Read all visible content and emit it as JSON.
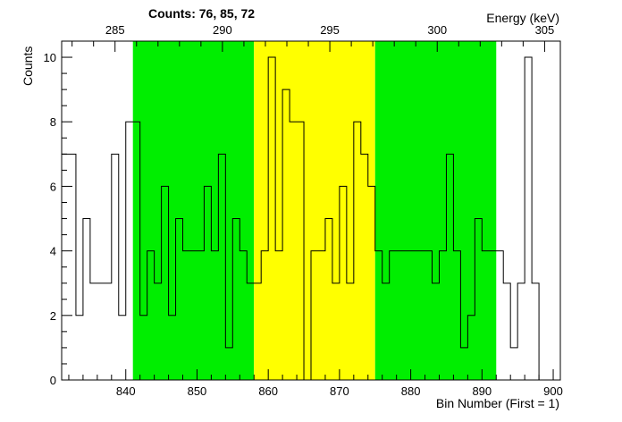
{
  "chart_data": {
    "type": "histogram",
    "counts_label": "Counts:   76,   85,   72",
    "xlabel": "Bin Number (First = 1)",
    "ylabel": "Counts",
    "x2label": "Energy (keV)",
    "xlim": [
      831,
      901
    ],
    "ylim": [
      0,
      10.5
    ],
    "x_ticks": [
      840,
      850,
      860,
      870,
      880,
      890,
      900
    ],
    "y_ticks": [
      0,
      2,
      4,
      6,
      8,
      10
    ],
    "energy_ticks": [
      285,
      290,
      295,
      300,
      305
    ],
    "energy_calibration": {
      "bin": [
        840,
        900
      ],
      "energy": [
        285.5,
        305.4
      ]
    },
    "regions": [
      {
        "from": 841,
        "to": 858,
        "color": "#00ee00"
      },
      {
        "from": 858,
        "to": 875,
        "color": "#ffff00"
      },
      {
        "from": 875,
        "to": 892,
        "color": "#00ee00"
      }
    ],
    "bin_start": 831,
    "counts": [
      7,
      7,
      2,
      5,
      3,
      3,
      3,
      7,
      2,
      8,
      8,
      2,
      4,
      3,
      6,
      2,
      5,
      4,
      4,
      4,
      6,
      4,
      7,
      1,
      5,
      4,
      3,
      3,
      4,
      10,
      4,
      9,
      8,
      8,
      0,
      4,
      4,
      5,
      3,
      6,
      3,
      8,
      7,
      6,
      4,
      3,
      4,
      4,
      4,
      4,
      4,
      4,
      3,
      4,
      7,
      4,
      1,
      2,
      5,
      4,
      4,
      4,
      3,
      1,
      3,
      10,
      3
    ]
  }
}
